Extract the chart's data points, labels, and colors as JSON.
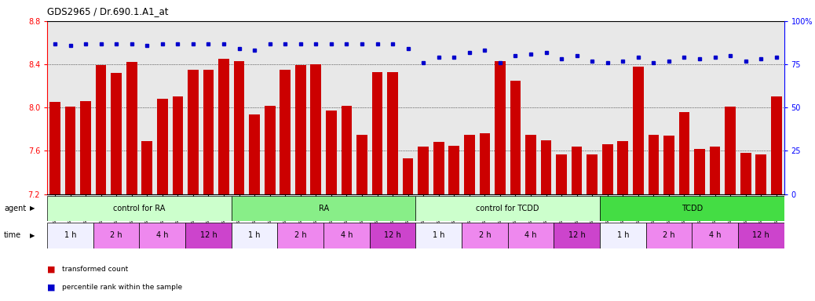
{
  "title": "GDS2965 / Dr.690.1.A1_at",
  "samples": [
    "GSM228874",
    "GSM228875",
    "GSM228876",
    "GSM228880",
    "GSM228881",
    "GSM228882",
    "GSM228886",
    "GSM228887",
    "GSM228888",
    "GSM228892",
    "GSM228893",
    "GSM228894",
    "GSM228871",
    "GSM228872",
    "GSM228873",
    "GSM228877",
    "GSM228878",
    "GSM228879",
    "GSM228883",
    "GSM228884",
    "GSM228885",
    "GSM228889",
    "GSM228890",
    "GSM228891",
    "GSM228898",
    "GSM228899",
    "GSM228900",
    "GSM228905",
    "GSM228906",
    "GSM228907",
    "GSM228911",
    "GSM228912",
    "GSM228913",
    "GSM228917",
    "GSM228918",
    "GSM228919",
    "GSM228895",
    "GSM228896",
    "GSM228897",
    "GSM228901",
    "GSM228903",
    "GSM228904",
    "GSM228908",
    "GSM228909",
    "GSM228910",
    "GSM228914",
    "GSM228915",
    "GSM228916"
  ],
  "bar_values": [
    8.05,
    8.01,
    8.06,
    8.39,
    8.32,
    8.42,
    7.69,
    8.08,
    8.1,
    8.35,
    8.35,
    8.45,
    8.43,
    7.94,
    8.02,
    8.35,
    8.39,
    8.4,
    7.97,
    8.02,
    7.75,
    8.33,
    8.33,
    7.53,
    7.64,
    7.68,
    7.65,
    7.75,
    7.76,
    8.43,
    8.25,
    7.75,
    7.7,
    7.57,
    7.64,
    7.57,
    7.66,
    7.69,
    8.38,
    7.75,
    7.74,
    7.96,
    7.62,
    7.64,
    8.01,
    7.58,
    7.57,
    8.1
  ],
  "percentile_values": [
    87,
    86,
    87,
    87,
    87,
    87,
    86,
    87,
    87,
    87,
    87,
    87,
    84,
    83,
    87,
    87,
    87,
    87,
    87,
    87,
    87,
    87,
    87,
    84,
    76,
    79,
    79,
    82,
    83,
    76,
    80,
    81,
    82,
    78,
    80,
    77,
    76,
    77,
    79,
    76,
    77,
    79,
    78,
    79,
    80,
    77,
    78,
    79
  ],
  "bar_color": "#cc0000",
  "dot_color": "#0000cc",
  "ylim_left": [
    7.2,
    8.8
  ],
  "ylim_right": [
    0,
    100
  ],
  "yticks_left": [
    7.2,
    7.6,
    8.0,
    8.4,
    8.8
  ],
  "yticks_right": [
    0,
    25,
    50,
    75,
    100
  ],
  "agents": [
    {
      "label": "control for RA",
      "start": 0,
      "end": 12,
      "color": "#ccffcc"
    },
    {
      "label": "RA",
      "start": 12,
      "end": 24,
      "color": "#88ee88"
    },
    {
      "label": "control for TCDD",
      "start": 24,
      "end": 36,
      "color": "#ccffcc"
    },
    {
      "label": "TCDD",
      "start": 36,
      "end": 48,
      "color": "#44dd44"
    }
  ],
  "time_groups": [
    {
      "label": "1 h",
      "start": 0,
      "end": 3,
      "color": "#f0f0ff"
    },
    {
      "label": "2 h",
      "start": 3,
      "end": 6,
      "color": "#ee88ee"
    },
    {
      "label": "4 h",
      "start": 6,
      "end": 9,
      "color": "#ee88ee"
    },
    {
      "label": "12 h",
      "start": 9,
      "end": 12,
      "color": "#cc44cc"
    },
    {
      "label": "1 h",
      "start": 12,
      "end": 15,
      "color": "#f0f0ff"
    },
    {
      "label": "2 h",
      "start": 15,
      "end": 18,
      "color": "#ee88ee"
    },
    {
      "label": "4 h",
      "start": 18,
      "end": 21,
      "color": "#ee88ee"
    },
    {
      "label": "12 h",
      "start": 21,
      "end": 24,
      "color": "#cc44cc"
    },
    {
      "label": "1 h",
      "start": 24,
      "end": 27,
      "color": "#f0f0ff"
    },
    {
      "label": "2 h",
      "start": 27,
      "end": 30,
      "color": "#ee88ee"
    },
    {
      "label": "4 h",
      "start": 30,
      "end": 33,
      "color": "#ee88ee"
    },
    {
      "label": "12 h",
      "start": 33,
      "end": 36,
      "color": "#cc44cc"
    },
    {
      "label": "1 h",
      "start": 36,
      "end": 39,
      "color": "#f0f0ff"
    },
    {
      "label": "2 h",
      "start": 39,
      "end": 42,
      "color": "#ee88ee"
    },
    {
      "label": "4 h",
      "start": 42,
      "end": 45,
      "color": "#ee88ee"
    },
    {
      "label": "12 h",
      "start": 45,
      "end": 48,
      "color": "#cc44cc"
    }
  ],
  "legend_bar_label": "transformed count",
  "legend_dot_label": "percentile rank within the sample",
  "chart_bg": "#e8e8e8"
}
